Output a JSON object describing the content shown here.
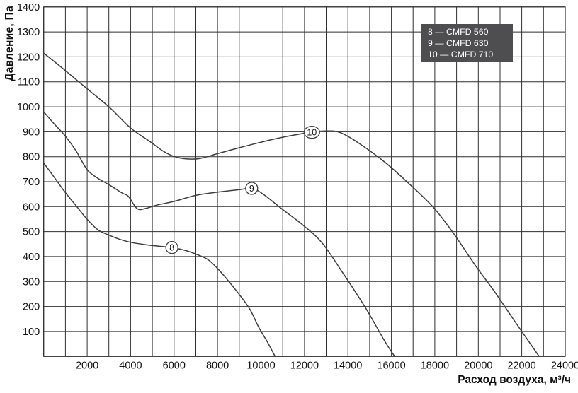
{
  "chart_data": {
    "type": "line",
    "title": "",
    "xlabel": "Расход воздуха, м³/ч",
    "ylabel": "Давление, Па",
    "xlim": [
      0,
      24000
    ],
    "ylim": [
      0,
      1400
    ],
    "x_grid_step": 1000,
    "y_grid_step": 100,
    "x_label_step": 2000,
    "y_label_step": 100,
    "grid": true,
    "legend_position": "top-right",
    "series": [
      {
        "id": "8",
        "name": "CMFD 560",
        "legend_label": "8 — CMFD 560",
        "marker": {
          "label": "8",
          "x": 5900,
          "y": 436
        },
        "points": [
          [
            0,
            775
          ],
          [
            500,
            716
          ],
          [
            1000,
            656
          ],
          [
            1500,
            603
          ],
          [
            2000,
            549
          ],
          [
            2500,
            507
          ],
          [
            3000,
            486
          ],
          [
            3500,
            469
          ],
          [
            4000,
            457
          ],
          [
            4500,
            450
          ],
          [
            5000,
            444
          ],
          [
            5900,
            436
          ],
          [
            6500,
            425
          ],
          [
            7000,
            410
          ],
          [
            7600,
            385
          ],
          [
            8200,
            333
          ],
          [
            9000,
            248
          ],
          [
            9500,
            187
          ],
          [
            9900,
            116
          ],
          [
            10300,
            57
          ],
          [
            10650,
            0
          ]
        ]
      },
      {
        "id": "9",
        "name": "CMFD 630",
        "legend_label": "9 — CMFD 630",
        "marker": {
          "label": "9",
          "x": 9570,
          "y": 673
        },
        "points": [
          [
            0,
            980
          ],
          [
            500,
            930
          ],
          [
            1000,
            882
          ],
          [
            1500,
            822
          ],
          [
            2000,
            748
          ],
          [
            2500,
            713
          ],
          [
            3000,
            688
          ],
          [
            3600,
            655
          ],
          [
            3900,
            641
          ],
          [
            4300,
            592
          ],
          [
            4700,
            593
          ],
          [
            5200,
            606
          ],
          [
            6000,
            621
          ],
          [
            7000,
            645
          ],
          [
            8000,
            658
          ],
          [
            9000,
            668
          ],
          [
            9600,
            673
          ],
          [
            10100,
            650
          ],
          [
            10900,
            595
          ],
          [
            11900,
            528
          ],
          [
            12800,
            456
          ],
          [
            13800,
            330
          ],
          [
            14800,
            196
          ],
          [
            15700,
            60
          ],
          [
            16150,
            0
          ]
        ]
      },
      {
        "id": "10",
        "name": "CMFD 710",
        "legend_label": "10 — CMFD 710",
        "marker": {
          "label": "10",
          "x": 12340,
          "y": 898
        },
        "points": [
          [
            0,
            1215
          ],
          [
            1000,
            1145
          ],
          [
            2000,
            1072
          ],
          [
            3000,
            1000
          ],
          [
            4000,
            915
          ],
          [
            4900,
            860
          ],
          [
            5500,
            822
          ],
          [
            6000,
            801
          ],
          [
            6600,
            791
          ],
          [
            7200,
            793
          ],
          [
            8000,
            812
          ],
          [
            9000,
            836
          ],
          [
            10000,
            858
          ],
          [
            11000,
            878
          ],
          [
            12300,
            898
          ],
          [
            13000,
            903
          ],
          [
            13600,
            898
          ],
          [
            14400,
            860
          ],
          [
            15700,
            778
          ],
          [
            16800,
            693
          ],
          [
            17900,
            600
          ],
          [
            18800,
            500
          ],
          [
            19900,
            360
          ],
          [
            20700,
            265
          ],
          [
            21700,
            138
          ],
          [
            22800,
            0
          ]
        ]
      }
    ],
    "colors": {
      "background": "#ffffff",
      "grid": "#2f2f2f",
      "curve": "#3d3d3d",
      "text": "#111111",
      "legend_bg": "#4e4e51",
      "legend_text": "#ffffff"
    }
  }
}
